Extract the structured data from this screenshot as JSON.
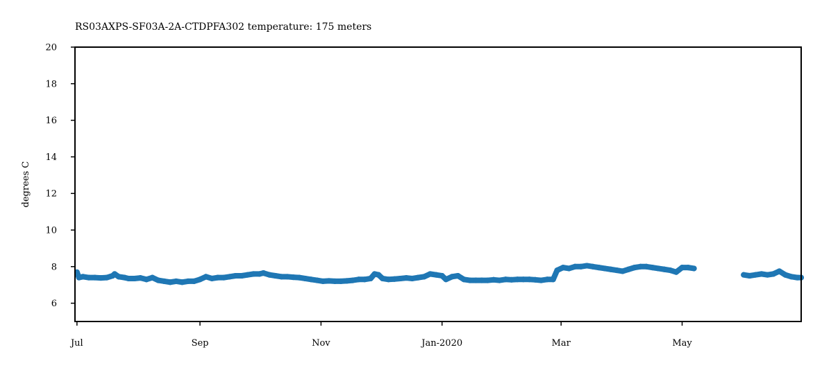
{
  "chart_data": {
    "type": "scatter",
    "title": "RS03AXPS-SF03A-2A-CTDPFA302 temperature: 175 meters",
    "xlabel": "",
    "ylabel": "degrees C",
    "ylim": [
      5,
      20
    ],
    "xlim": [
      "2019-06-30",
      "2020-06-30"
    ],
    "yticks": [
      6,
      8,
      10,
      12,
      14,
      16,
      18,
      20
    ],
    "xticks": [
      {
        "date": "2019-07-01",
        "label": "Jul"
      },
      {
        "date": "2019-09-01",
        "label": "Sep"
      },
      {
        "date": "2019-11-01",
        "label": "Nov"
      },
      {
        "date": "2020-01-01",
        "label": "Jan-2020"
      },
      {
        "date": "2020-03-01",
        "label": "Mar"
      },
      {
        "date": "2020-05-01",
        "label": "May"
      }
    ],
    "color": "#1f77b4",
    "grid": false,
    "series": [
      {
        "points": [
          [
            "2019-07-01",
            7.7
          ],
          [
            "2019-07-02",
            7.4
          ],
          [
            "2019-07-04",
            7.45
          ],
          [
            "2019-07-07",
            7.4
          ],
          [
            "2019-07-10",
            7.4
          ],
          [
            "2019-07-13",
            7.38
          ],
          [
            "2019-07-16",
            7.4
          ],
          [
            "2019-07-19",
            7.5
          ],
          [
            "2019-07-20",
            7.6
          ],
          [
            "2019-07-22",
            7.45
          ],
          [
            "2019-07-25",
            7.4
          ],
          [
            "2019-07-27",
            7.35
          ],
          [
            "2019-07-30",
            7.35
          ],
          [
            "2019-08-02",
            7.38
          ],
          [
            "2019-08-05",
            7.3
          ],
          [
            "2019-08-08",
            7.4
          ],
          [
            "2019-08-11",
            7.25
          ],
          [
            "2019-08-14",
            7.2
          ],
          [
            "2019-08-17",
            7.15
          ],
          [
            "2019-08-20",
            7.2
          ],
          [
            "2019-08-23",
            7.15
          ],
          [
            "2019-08-26",
            7.2
          ],
          [
            "2019-08-29",
            7.2
          ],
          [
            "2019-09-01",
            7.3
          ],
          [
            "2019-09-04",
            7.45
          ],
          [
            "2019-09-07",
            7.35
          ],
          [
            "2019-09-10",
            7.4
          ],
          [
            "2019-09-13",
            7.4
          ],
          [
            "2019-09-16",
            7.45
          ],
          [
            "2019-09-19",
            7.5
          ],
          [
            "2019-09-22",
            7.5
          ],
          [
            "2019-09-25",
            7.55
          ],
          [
            "2019-09-28",
            7.6
          ],
          [
            "2019-10-01",
            7.6
          ],
          [
            "2019-10-03",
            7.65
          ],
          [
            "2019-10-06",
            7.55
          ],
          [
            "2019-10-09",
            7.5
          ],
          [
            "2019-10-12",
            7.45
          ],
          [
            "2019-10-15",
            7.45
          ],
          [
            "2019-10-18",
            7.42
          ],
          [
            "2019-10-21",
            7.4
          ],
          [
            "2019-10-24",
            7.35
          ],
          [
            "2019-10-27",
            7.3
          ],
          [
            "2019-10-30",
            7.25
          ],
          [
            "2019-11-02",
            7.2
          ],
          [
            "2019-11-05",
            7.22
          ],
          [
            "2019-11-08",
            7.2
          ],
          [
            "2019-11-11",
            7.2
          ],
          [
            "2019-11-14",
            7.22
          ],
          [
            "2019-11-17",
            7.25
          ],
          [
            "2019-11-20",
            7.3
          ],
          [
            "2019-11-23",
            7.3
          ],
          [
            "2019-11-26",
            7.35
          ],
          [
            "2019-11-28",
            7.6
          ],
          [
            "2019-11-30",
            7.55
          ],
          [
            "2019-12-02",
            7.35
          ],
          [
            "2019-12-05",
            7.3
          ],
          [
            "2019-12-08",
            7.32
          ],
          [
            "2019-12-11",
            7.35
          ],
          [
            "2019-12-14",
            7.38
          ],
          [
            "2019-12-17",
            7.35
          ],
          [
            "2019-12-20",
            7.4
          ],
          [
            "2019-12-23",
            7.45
          ],
          [
            "2019-12-26",
            7.6
          ],
          [
            "2019-12-29",
            7.55
          ],
          [
            "2020-01-01",
            7.5
          ],
          [
            "2020-01-03",
            7.3
          ],
          [
            "2020-01-06",
            7.45
          ],
          [
            "2020-01-09",
            7.5
          ],
          [
            "2020-01-12",
            7.3
          ],
          [
            "2020-01-15",
            7.25
          ],
          [
            "2020-01-18",
            7.25
          ],
          [
            "2020-01-21",
            7.25
          ],
          [
            "2020-01-24",
            7.25
          ],
          [
            "2020-01-27",
            7.28
          ],
          [
            "2020-01-30",
            7.25
          ],
          [
            "2020-02-02",
            7.3
          ],
          [
            "2020-02-05",
            7.28
          ],
          [
            "2020-02-08",
            7.3
          ],
          [
            "2020-02-11",
            7.3
          ],
          [
            "2020-02-14",
            7.3
          ],
          [
            "2020-02-17",
            7.28
          ],
          [
            "2020-02-20",
            7.25
          ],
          [
            "2020-02-23",
            7.3
          ],
          [
            "2020-02-26",
            7.3
          ],
          [
            "2020-02-28",
            7.8
          ],
          [
            "2020-03-02",
            7.95
          ],
          [
            "2020-03-05",
            7.9
          ],
          [
            "2020-03-08",
            8.0
          ],
          [
            "2020-03-11",
            8.0
          ],
          [
            "2020-03-14",
            8.05
          ],
          [
            "2020-03-17",
            8.0
          ],
          [
            "2020-03-20",
            7.95
          ],
          [
            "2020-03-23",
            7.9
          ],
          [
            "2020-03-26",
            7.85
          ],
          [
            "2020-03-29",
            7.8
          ],
          [
            "2020-04-01",
            7.75
          ],
          [
            "2020-04-04",
            7.85
          ],
          [
            "2020-04-07",
            7.95
          ],
          [
            "2020-04-10",
            8.0
          ],
          [
            "2020-04-13",
            8.0
          ],
          [
            "2020-04-16",
            7.95
          ],
          [
            "2020-04-19",
            7.9
          ],
          [
            "2020-04-22",
            7.85
          ],
          [
            "2020-04-25",
            7.8
          ],
          [
            "2020-04-28",
            7.7
          ],
          [
            "2020-05-01",
            7.95
          ],
          [
            "2020-05-04",
            7.95
          ],
          [
            "2020-05-07",
            7.9
          ],
          [
            "2020-06-01",
            7.55
          ],
          [
            "2020-06-04",
            7.5
          ],
          [
            "2020-06-07",
            7.55
          ],
          [
            "2020-06-10",
            7.6
          ],
          [
            "2020-06-13",
            7.55
          ],
          [
            "2020-06-16",
            7.6
          ],
          [
            "2020-06-19",
            7.75
          ],
          [
            "2020-06-22",
            7.55
          ],
          [
            "2020-06-25",
            7.45
          ],
          [
            "2020-06-28",
            7.4
          ],
          [
            "2020-06-30",
            7.4
          ]
        ]
      }
    ]
  }
}
